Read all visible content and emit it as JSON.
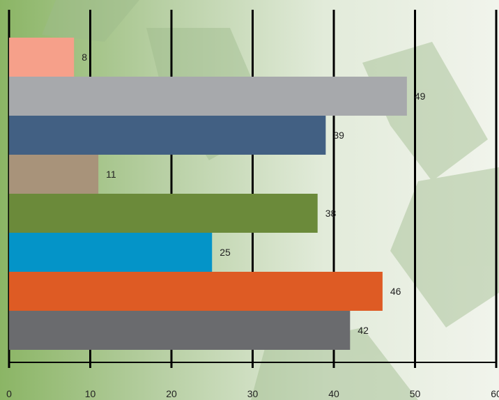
{
  "chart_data": {
    "type": "bar",
    "orientation": "horizontal",
    "title": "",
    "xlabel": "",
    "ylabel": "",
    "xlim": [
      0,
      60
    ],
    "ticks": [
      "0",
      "10",
      "20",
      "30",
      "40",
      "50",
      "60"
    ],
    "tick_values": [
      0,
      10,
      20,
      30,
      40,
      50,
      60
    ],
    "grid": "vertical",
    "legend": "none",
    "bars": [
      {
        "value": 8,
        "label": "8",
        "color": "#F6A08A"
      },
      {
        "value": 49,
        "label": "49",
        "color": "#A7A9AC"
      },
      {
        "value": 39,
        "label": "39",
        "color": "#426083"
      },
      {
        "value": 11,
        "label": "11",
        "color": "#A8937A"
      },
      {
        "value": 38,
        "label": "38",
        "color": "#6B8A3A"
      },
      {
        "value": 25,
        "label": "25",
        "color": "#0494C8"
      },
      {
        "value": 46,
        "label": "46",
        "color": "#DE5B24"
      },
      {
        "value": 42,
        "label": "42",
        "color": "#6A6B6E"
      }
    ],
    "background_colors": {
      "left": "#8BB565",
      "right": "#F1F4EC",
      "symbol": "#9EBB8C"
    }
  }
}
